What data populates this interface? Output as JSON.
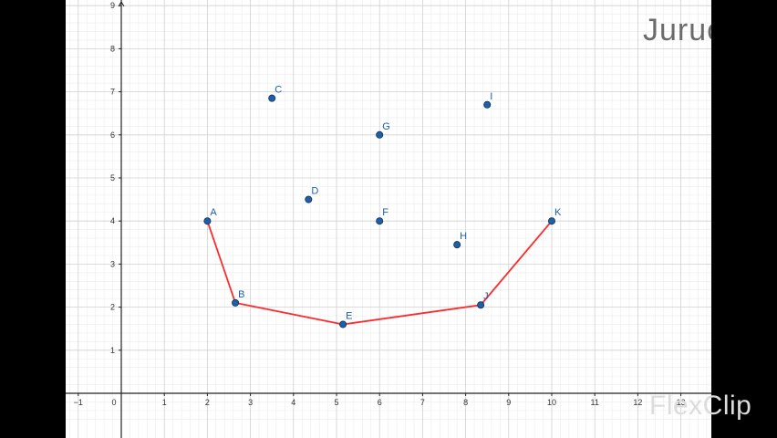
{
  "watermark": {
    "text": "Juruoer"
  },
  "overlay_logo": {
    "text": "FlexClip",
    "icon": "flexclip-logo-icon"
  },
  "chart_data": {
    "type": "scatter",
    "title": "",
    "xlabel": "",
    "ylabel": "",
    "xlim": [
      -1.5,
      13.6
    ],
    "ylim": [
      -0.6,
      9
    ],
    "grid": true,
    "x_ticks": [
      -1,
      0,
      1,
      2,
      3,
      4,
      5,
      6,
      7,
      8,
      9,
      10,
      11,
      12,
      13
    ],
    "y_ticks": [
      1,
      2,
      3,
      4,
      5,
      6,
      7,
      8,
      9
    ],
    "points": [
      {
        "label": "A",
        "x": 2.0,
        "y": 4.0
      },
      {
        "label": "B",
        "x": 2.65,
        "y": 2.1
      },
      {
        "label": "C",
        "x": 3.5,
        "y": 6.85
      },
      {
        "label": "D",
        "x": 4.35,
        "y": 4.5
      },
      {
        "label": "E",
        "x": 5.15,
        "y": 1.6
      },
      {
        "label": "F",
        "x": 6.0,
        "y": 4.0
      },
      {
        "label": "G",
        "x": 6.0,
        "y": 6.0
      },
      {
        "label": "H",
        "x": 7.8,
        "y": 3.45
      },
      {
        "label": "I",
        "x": 8.5,
        "y": 6.7
      },
      {
        "label": "J",
        "x": 8.35,
        "y": 2.05
      },
      {
        "label": "K",
        "x": 10.0,
        "y": 4.0
      }
    ],
    "path": [
      "A",
      "B",
      "E",
      "J",
      "K"
    ],
    "colors": {
      "point": "#1f5fa8",
      "path": "#ff2b2b",
      "label": "#1f5fa8",
      "grid_major": "#d0d0d0",
      "grid_minor": "#ececec",
      "axis": "#222222"
    }
  }
}
